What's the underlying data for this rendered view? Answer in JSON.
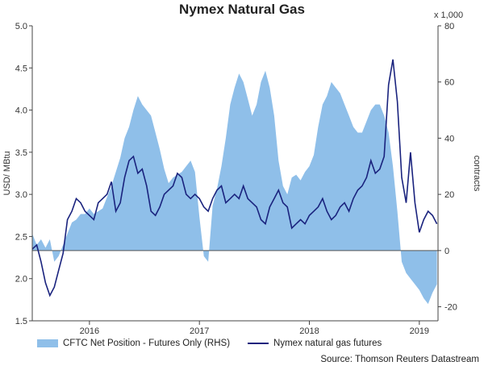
{
  "colors": {
    "area": "#8fbfe9",
    "line": "#1a237e",
    "zero_line": "#555555",
    "axis": "#444444"
  },
  "chart_data": {
    "type": "line",
    "title": "Nymex Natural Gas",
    "ylabel_left": "USD/ MBtu",
    "ylabel_right": "contracts",
    "right_multiplier": "x 1,000",
    "x_tick_labels": [
      "2016",
      "2017",
      "2018",
      "2019"
    ],
    "x_tick_positions": [
      2016.0,
      2017.0,
      2018.0,
      2019.0
    ],
    "xlim": [
      2015.48,
      2019.17
    ],
    "ylim_left": [
      1.5,
      5.0
    ],
    "ylim_right": [
      -25,
      80
    ],
    "left_ticks": [
      "1.5",
      "2.0",
      "2.5",
      "3.0",
      "3.5",
      "4.0",
      "4.5",
      "5.0"
    ],
    "right_ticks": [
      "-20",
      "0",
      "20",
      "40",
      "60",
      "80"
    ],
    "legend_position": "bottom",
    "source": "Source: Thomson Reuters Datastream",
    "series": [
      {
        "name": "CFTC Net Position - Futures Only (RHS)",
        "kind": "area",
        "axis": "right",
        "x": [
          2015.48,
          2015.52,
          2015.56,
          2015.6,
          2015.64,
          2015.68,
          2015.72,
          2015.76,
          2015.8,
          2015.84,
          2015.88,
          2015.92,
          2015.96,
          2016.0,
          2016.04,
          2016.08,
          2016.12,
          2016.16,
          2016.2,
          2016.24,
          2016.28,
          2016.32,
          2016.36,
          2016.4,
          2016.44,
          2016.48,
          2016.52,
          2016.56,
          2016.6,
          2016.64,
          2016.68,
          2016.72,
          2016.76,
          2016.8,
          2016.84,
          2016.88,
          2016.92,
          2016.96,
          2017.0,
          2017.04,
          2017.08,
          2017.12,
          2017.16,
          2017.2,
          2017.24,
          2017.28,
          2017.32,
          2017.36,
          2017.4,
          2017.44,
          2017.48,
          2017.52,
          2017.56,
          2017.6,
          2017.64,
          2017.68,
          2017.72,
          2017.76,
          2017.8,
          2017.84,
          2017.88,
          2017.92,
          2017.96,
          2018.0,
          2018.04,
          2018.08,
          2018.12,
          2018.16,
          2018.2,
          2018.24,
          2018.28,
          2018.32,
          2018.36,
          2018.4,
          2018.44,
          2018.48,
          2018.52,
          2018.56,
          2018.6,
          2018.64,
          2018.68,
          2018.72,
          2018.76,
          2018.8,
          2018.84,
          2018.88,
          2018.92,
          2018.96,
          2019.0,
          2019.04,
          2019.08,
          2019.12,
          2019.16
        ],
        "values": [
          6,
          2,
          4,
          1,
          4,
          -4,
          -2,
          2,
          6,
          10,
          11,
          13,
          13,
          15,
          13,
          14,
          15,
          19,
          23,
          28,
          33,
          40,
          44,
          50,
          55,
          52,
          50,
          48,
          42,
          36,
          29,
          24,
          26,
          27,
          28,
          30,
          32,
          28,
          12,
          -2,
          -4,
          16,
          22,
          30,
          40,
          52,
          58,
          63,
          60,
          54,
          48,
          52,
          60,
          64,
          58,
          48,
          32,
          23,
          20,
          26,
          27,
          25,
          28,
          30,
          34,
          44,
          52,
          55,
          60,
          58,
          56,
          52,
          48,
          44,
          42,
          42,
          46,
          50,
          52,
          52,
          48,
          42,
          30,
          14,
          -4,
          -8,
          -10,
          -12,
          -14,
          -17,
          -19,
          -15,
          -12
        ]
      },
      {
        "name": "Nymex natural gas futures",
        "kind": "line",
        "axis": "left",
        "x": [
          2015.48,
          2015.52,
          2015.56,
          2015.6,
          2015.64,
          2015.68,
          2015.72,
          2015.76,
          2015.8,
          2015.84,
          2015.88,
          2015.92,
          2015.96,
          2016.0,
          2016.04,
          2016.08,
          2016.12,
          2016.16,
          2016.2,
          2016.24,
          2016.28,
          2016.32,
          2016.36,
          2016.4,
          2016.44,
          2016.48,
          2016.52,
          2016.56,
          2016.6,
          2016.64,
          2016.68,
          2016.72,
          2016.76,
          2016.8,
          2016.84,
          2016.88,
          2016.92,
          2016.96,
          2017.0,
          2017.04,
          2017.08,
          2017.12,
          2017.16,
          2017.2,
          2017.24,
          2017.28,
          2017.32,
          2017.36,
          2017.4,
          2017.44,
          2017.48,
          2017.52,
          2017.56,
          2017.6,
          2017.64,
          2017.68,
          2017.72,
          2017.76,
          2017.8,
          2017.84,
          2017.88,
          2017.92,
          2017.96,
          2018.0,
          2018.04,
          2018.08,
          2018.12,
          2018.16,
          2018.2,
          2018.24,
          2018.28,
          2018.32,
          2018.36,
          2018.4,
          2018.44,
          2018.48,
          2018.52,
          2018.56,
          2018.6,
          2018.64,
          2018.68,
          2018.72,
          2018.76,
          2018.8,
          2018.84,
          2018.88,
          2018.92,
          2018.96,
          2019.0,
          2019.04,
          2019.08,
          2019.12,
          2019.16
        ],
        "values": [
          2.35,
          2.4,
          2.2,
          1.95,
          1.8,
          1.9,
          2.1,
          2.3,
          2.7,
          2.8,
          2.95,
          2.9,
          2.8,
          2.75,
          2.7,
          2.9,
          2.95,
          3.0,
          3.15,
          2.8,
          2.9,
          3.2,
          3.4,
          3.45,
          3.25,
          3.3,
          3.1,
          2.8,
          2.75,
          2.85,
          3.0,
          3.05,
          3.1,
          3.25,
          3.2,
          3.0,
          2.95,
          3.0,
          2.95,
          2.85,
          2.8,
          2.95,
          3.05,
          3.1,
          2.9,
          2.95,
          3.0,
          2.95,
          3.1,
          2.95,
          2.9,
          2.85,
          2.7,
          2.65,
          2.85,
          2.95,
          3.05,
          2.9,
          2.85,
          2.6,
          2.65,
          2.7,
          2.65,
          2.75,
          2.8,
          2.85,
          2.95,
          2.8,
          2.7,
          2.75,
          2.85,
          2.9,
          2.8,
          2.95,
          3.05,
          3.1,
          3.2,
          3.4,
          3.25,
          3.3,
          3.45,
          4.3,
          4.6,
          4.1,
          3.2,
          2.9,
          3.5,
          2.9,
          2.55,
          2.7,
          2.8,
          2.75,
          2.65
        ]
      }
    ]
  }
}
